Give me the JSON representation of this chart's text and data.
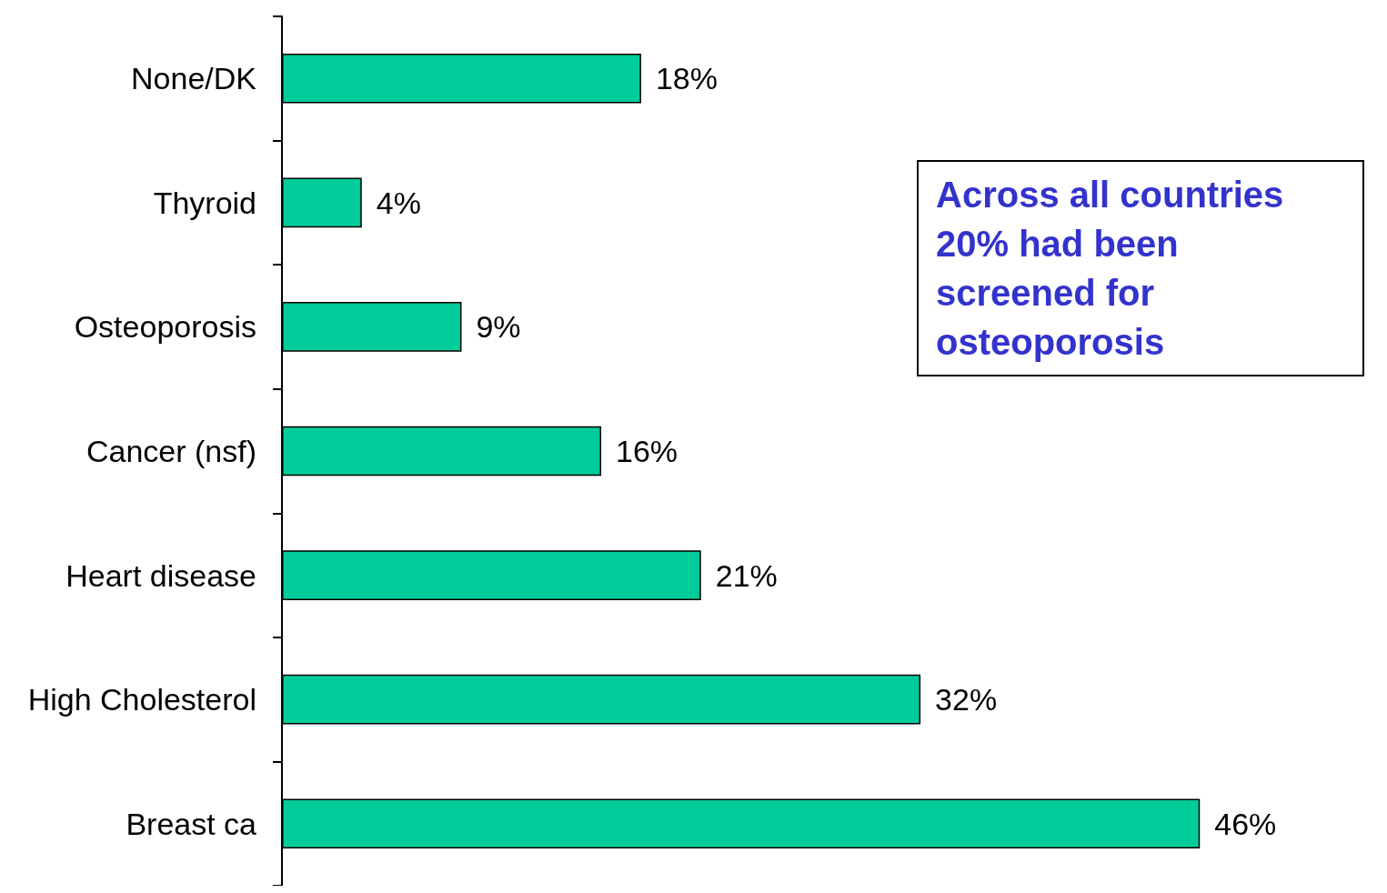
{
  "chart_data": {
    "type": "bar",
    "orientation": "horizontal",
    "categories": [
      "None/DK",
      "Thyroid",
      "Osteoporosis",
      "Cancer (nsf)",
      "Heart disease",
      "High Cholesterol",
      "Breast ca"
    ],
    "values": [
      18,
      4,
      9,
      16,
      21,
      32,
      46
    ],
    "value_labels": [
      "18%",
      "4%",
      "9%",
      "16%",
      "21%",
      "32%",
      "46%"
    ],
    "color": "#00cc99",
    "annotations": [
      "Across all countries 20% had been screened for osteoporosis"
    ]
  }
}
